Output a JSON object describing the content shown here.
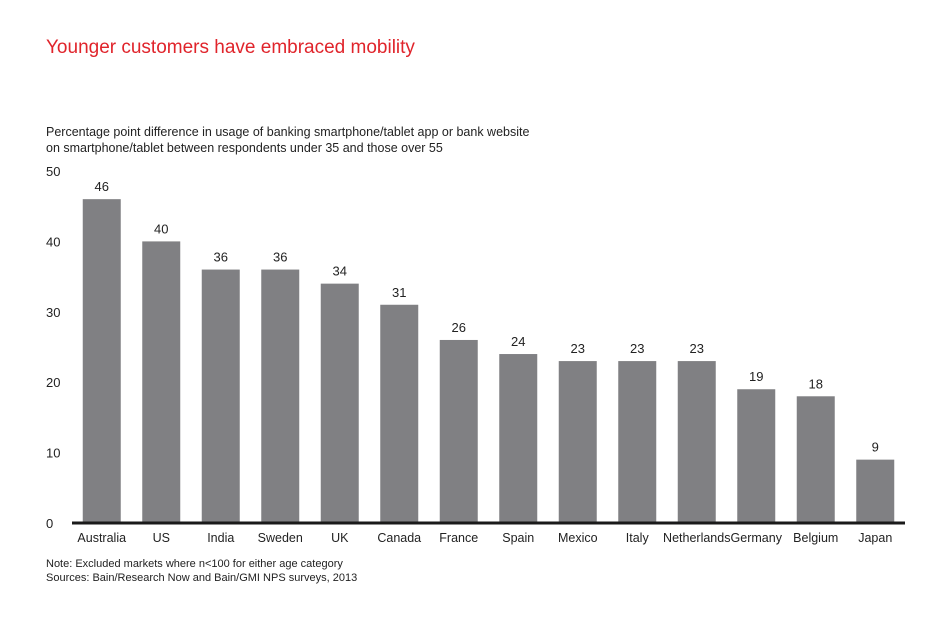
{
  "header": {
    "title": "Younger customers have embraced mobility",
    "subtitle_line1": "Percentage point difference in usage of banking smartphone/tablet app or bank website",
    "subtitle_line2": "on smartphone/tablet between respondents under 35 and those over 55"
  },
  "footer": {
    "note": "Note: Excluded markets where n<100 for either age category",
    "sources": "Sources: Bain/Research Now and Bain/GMI NPS surveys, 2013"
  },
  "colors": {
    "title": "#e0242b",
    "bar": "#808083",
    "axis": "#1a1a1a"
  },
  "chart_data": {
    "type": "bar",
    "title": "Younger customers have embraced mobility",
    "xlabel": "",
    "ylabel": "",
    "categories": [
      "Australia",
      "US",
      "India",
      "Sweden",
      "UK",
      "Canada",
      "France",
      "Spain",
      "Mexico",
      "Italy",
      "Netherlands",
      "Germany",
      "Belgium",
      "Japan"
    ],
    "values": [
      46,
      40,
      36,
      36,
      34,
      31,
      26,
      24,
      23,
      23,
      23,
      19,
      18,
      9
    ],
    "ylim": [
      0,
      50
    ],
    "yticks": [
      0,
      10,
      20,
      30,
      40,
      50
    ],
    "grid": false,
    "legend": "none",
    "data_labels": true
  }
}
